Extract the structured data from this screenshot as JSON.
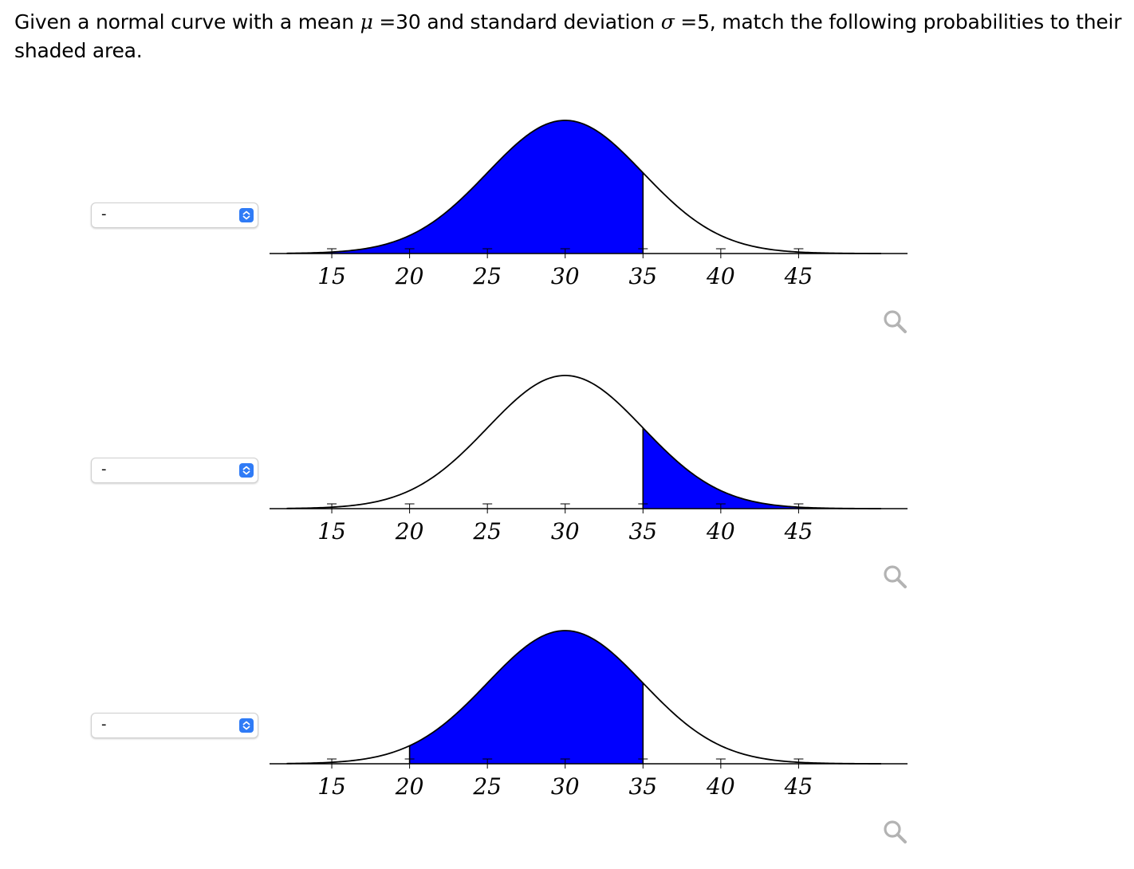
{
  "question": {
    "part1": "Given a normal curve with a mean ",
    "mu_symbol": "μ",
    "mu_eq": " =",
    "mu_value": "30",
    "part2": " and standard deviation ",
    "sigma_symbol": "σ",
    "sigma_eq": " =",
    "sigma_value": "5",
    "part3": ", match the following probabilities to their shaded area."
  },
  "colors": {
    "shade": "#0000ff",
    "select_accent": "#2f7bf6",
    "zoom_icon": "#b3b3b3"
  },
  "items": [
    {
      "select_value": "-",
      "shade_from": null,
      "shade_to": 35,
      "zoom_icon": "magnifier-icon"
    },
    {
      "select_value": "-",
      "shade_from": 35,
      "shade_to": null,
      "zoom_icon": "magnifier-icon"
    },
    {
      "select_value": "-",
      "shade_from": 20,
      "shade_to": 35,
      "zoom_icon": "magnifier-icon"
    }
  ],
  "chart_data": [
    {
      "type": "area",
      "distribution": "normal",
      "mean": 30,
      "sd": 5,
      "xlim": [
        11,
        52
      ],
      "ticks": [
        15,
        20,
        25,
        30,
        35,
        40,
        45
      ],
      "tick_labels": [
        "15",
        "20",
        "25",
        "30",
        "35",
        "40",
        "45"
      ],
      "shaded_from": null,
      "shaded_to": 35
    },
    {
      "type": "area",
      "distribution": "normal",
      "mean": 30,
      "sd": 5,
      "xlim": [
        11,
        52
      ],
      "ticks": [
        15,
        20,
        25,
        30,
        35,
        40,
        45
      ],
      "tick_labels": [
        "15",
        "20",
        "25",
        "30",
        "35",
        "40",
        "45"
      ],
      "shaded_from": 35,
      "shaded_to": null
    },
    {
      "type": "area",
      "distribution": "normal",
      "mean": 30,
      "sd": 5,
      "xlim": [
        11,
        52
      ],
      "ticks": [
        15,
        20,
        25,
        30,
        35,
        40,
        45
      ],
      "tick_labels": [
        "15",
        "20",
        "25",
        "30",
        "35",
        "40",
        "45"
      ],
      "shaded_from": 20,
      "shaded_to": 35
    }
  ]
}
